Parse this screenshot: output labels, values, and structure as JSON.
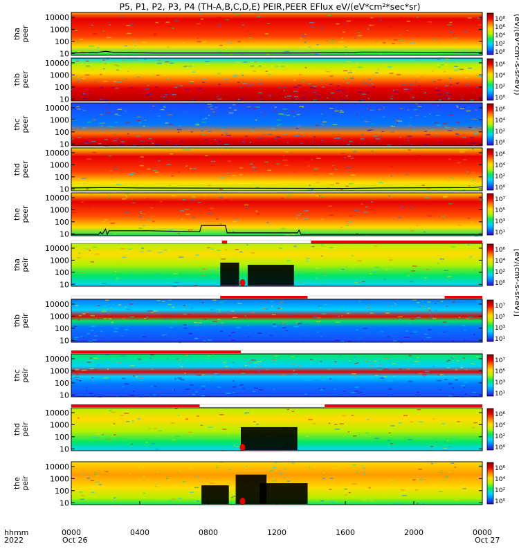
{
  "title": "P5, P1, P2, P3, P4 (TH-A,B,C,D,E) PEIR,PEER EFlux eV/(eV*cm²*sec*sr)",
  "x_axis": {
    "row1_label": "hhmm",
    "row2_label": "2022",
    "ticks": [
      "0000",
      "0400",
      "0800",
      "1200",
      "1600",
      "2000",
      "0000"
    ],
    "date_start": "Oct 26",
    "date_end": "Oct 27"
  },
  "colorbar_labels": {
    "peer": "(eV/(eV*cm²-s-sr-eV))",
    "peir": "[eV/(cm²-s-sr-eV)]"
  },
  "chart_data": {
    "type": "heatmap",
    "x_range_hours": [
      0,
      24
    ],
    "y_scale": "log",
    "y_range_eV": [
      7,
      25000
    ],
    "y_ticks": [
      "10000",
      "1000",
      "100",
      "10"
    ],
    "colorscale": [
      "#000000",
      "#3a00c8",
      "#0078ff",
      "#00d2ff",
      "#00e664",
      "#b4f000",
      "#ffdc00",
      "#ff7800",
      "#e60000",
      "#8c0000"
    ],
    "panels": [
      {
        "probe": "tha",
        "species": "peer",
        "label": [
          "tha",
          "peer"
        ],
        "cbar_top": "10⁸",
        "cbar_ticks": [
          "10⁸",
          "10⁶",
          "10⁴",
          "10²",
          "10⁰"
        ],
        "spacecraft_potential": [
          [
            0.0,
            11
          ],
          [
            1.5,
            12
          ],
          [
            2.0,
            15
          ],
          [
            2.5,
            12
          ],
          [
            5.0,
            11
          ],
          [
            8.5,
            11
          ],
          [
            13.5,
            11
          ],
          [
            16.5,
            12
          ],
          [
            17.0,
            13
          ],
          [
            24.0,
            12
          ]
        ]
      },
      {
        "probe": "thb",
        "species": "peer",
        "label": [
          "thb",
          "peer"
        ],
        "cbar_top": "10⁸",
        "cbar_ticks": [
          "10⁶",
          "10⁴",
          "10²",
          "10⁰"
        ]
      },
      {
        "probe": "thc",
        "species": "peer",
        "label": [
          "thc",
          "peer"
        ],
        "cbar_top": "10⁸",
        "cbar_ticks": [
          "10⁶",
          "10⁴",
          "10²",
          "10⁰"
        ]
      },
      {
        "probe": "thd",
        "species": "peer",
        "label": [
          "thd",
          "peer"
        ],
        "cbar_top": "10⁸",
        "cbar_ticks": [
          "10⁶",
          "10⁴",
          "10²",
          "10⁰"
        ],
        "spacecraft_potential": [
          [
            0.0,
            12
          ],
          [
            2.0,
            13
          ],
          [
            4.0,
            12
          ],
          [
            16.0,
            11
          ],
          [
            18.0,
            12
          ],
          [
            23.5,
            13
          ],
          [
            24.0,
            15
          ]
        ]
      },
      {
        "probe": "the",
        "species": "peer",
        "label": [
          "the",
          "peer"
        ],
        "cbar_top": "10⁷",
        "cbar_ticks": [
          "10⁷",
          "10⁵",
          "10³",
          "10¹"
        ],
        "spacecraft_potential": [
          [
            0.0,
            9
          ],
          [
            1.6,
            9
          ],
          [
            1.7,
            14
          ],
          [
            1.8,
            9
          ],
          [
            2.0,
            25
          ],
          [
            2.1,
            9
          ],
          [
            2.2,
            18
          ],
          [
            4.5,
            18
          ],
          [
            5.5,
            17
          ],
          [
            7.5,
            15
          ],
          [
            7.6,
            50
          ],
          [
            9.0,
            50
          ],
          [
            9.1,
            12
          ],
          [
            13.2,
            12
          ],
          [
            13.3,
            20
          ],
          [
            13.4,
            9
          ],
          [
            15.0,
            9
          ],
          [
            24.0,
            9
          ]
        ]
      },
      {
        "probe": "tha",
        "species": "peir",
        "label": [
          "tha",
          "peir"
        ],
        "cbar_top": "10⁸",
        "cbar_ticks": [
          "10⁶",
          "10⁴",
          "10²",
          "10⁰"
        ]
      },
      {
        "probe": "thb",
        "species": "peir",
        "label": [
          "thb",
          "peir"
        ],
        "cbar_top": "10⁸",
        "cbar_ticks": [
          "10⁷",
          "10⁵",
          "10³",
          "10¹"
        ]
      },
      {
        "probe": "thc",
        "species": "peir",
        "label": [
          "thc",
          "peir"
        ],
        "cbar_top": "10⁸",
        "cbar_ticks": [
          "10⁷",
          "10⁵",
          "10³",
          "10¹"
        ]
      },
      {
        "probe": "thd",
        "species": "peir",
        "label": [
          "thd",
          "peir"
        ],
        "cbar_top": "10⁸",
        "cbar_ticks": [
          "10⁶",
          "10⁴",
          "10²",
          "10⁰"
        ]
      },
      {
        "probe": "the",
        "species": "peir",
        "label": [
          "the",
          "peir"
        ],
        "cbar_top": "10⁷",
        "cbar_ticks": [
          "10⁶",
          "10⁴",
          "10²",
          "10⁰"
        ]
      }
    ],
    "mode_bars_hours": [
      [
        [
          0.0,
          8.8,
          "#ffffff"
        ],
        [
          8.8,
          9.1,
          "#e60000"
        ],
        [
          9.1,
          14.0,
          "#ffffff"
        ],
        [
          14.0,
          24.0,
          "#e60000"
        ]
      ],
      [
        [
          0.0,
          8.7,
          "#ffffff"
        ],
        [
          8.7,
          13.8,
          "#e60000"
        ],
        [
          13.8,
          21.8,
          "#ffffff"
        ],
        [
          21.8,
          24.0,
          "#e60000"
        ]
      ],
      [
        [
          0.0,
          9.9,
          "#e60000"
        ],
        [
          9.9,
          24.0,
          "#ffffff"
        ]
      ],
      [
        [
          0.0,
          7.5,
          "#e60000"
        ],
        [
          7.5,
          14.8,
          "#ffffff"
        ],
        [
          14.8,
          24.0,
          "#e60000"
        ]
      ]
    ]
  }
}
